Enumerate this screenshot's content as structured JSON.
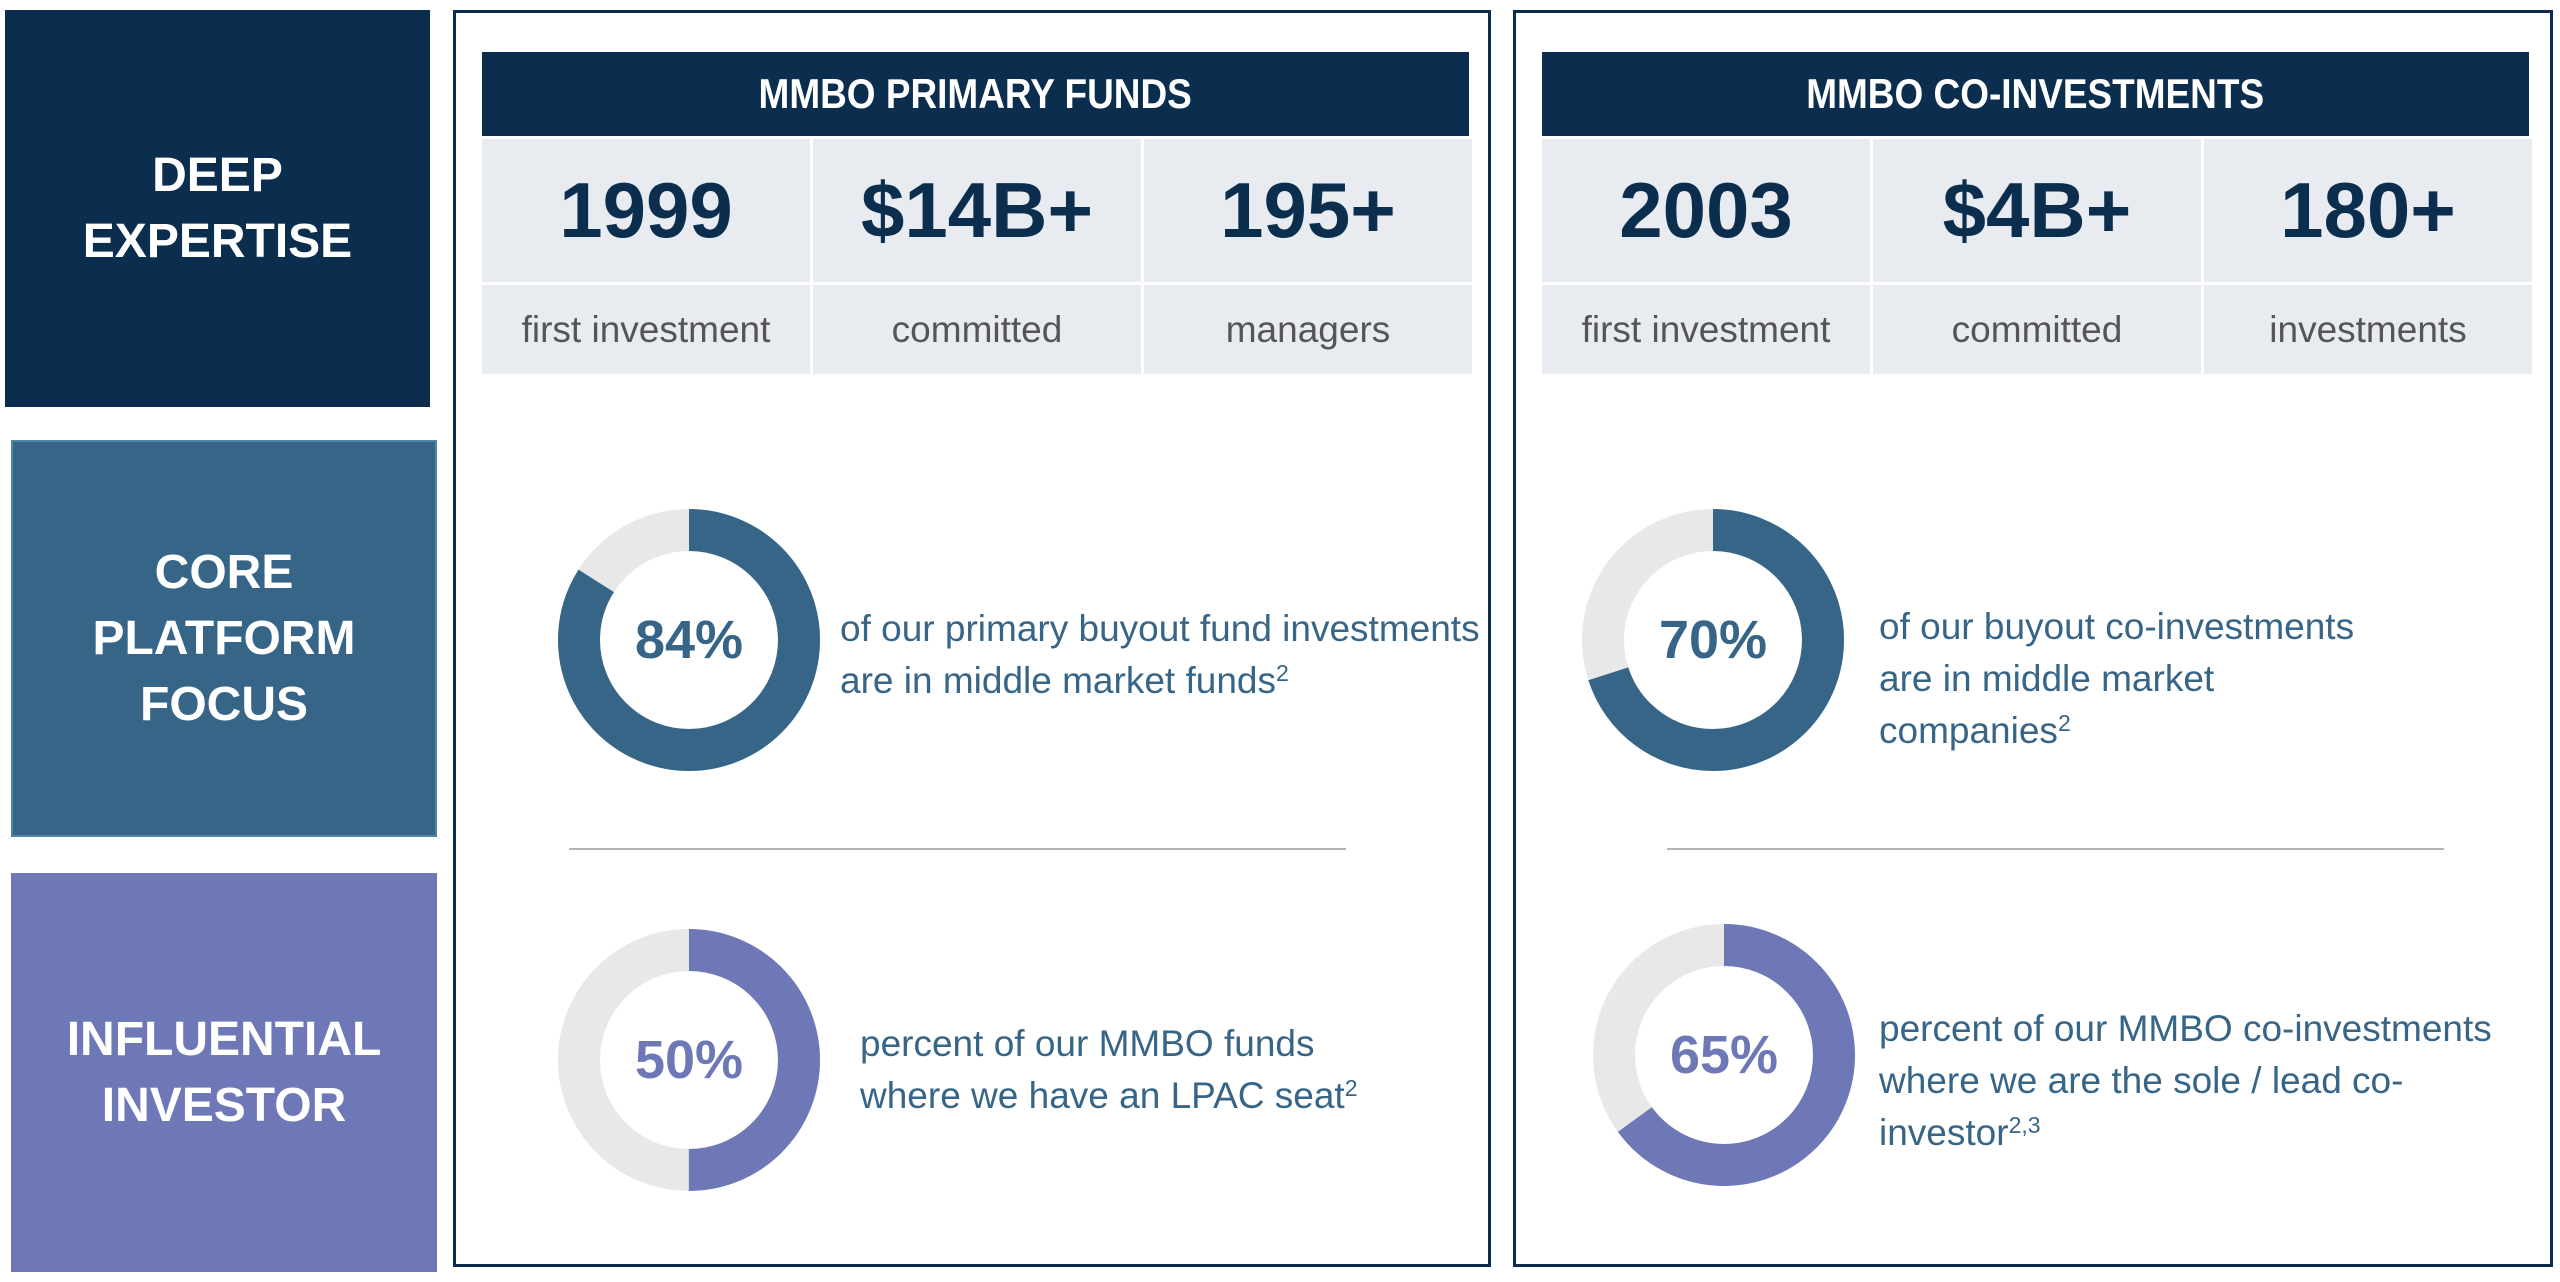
{
  "colors": {
    "navy": "#0b2e4f",
    "steel": "#376587",
    "purple": "#6f78b6",
    "cell_bg": "#e8ebf0",
    "donut_bg": "#e8e8e8"
  },
  "pillars": [
    {
      "label": "DEEP\nEXPERTISE",
      "color": "#0b2e4f"
    },
    {
      "label": "CORE\nPLATFORM\nFOCUS",
      "color": "#376587"
    },
    {
      "label": "INFLUENTIAL\nINVESTOR",
      "color": "#6f78b6"
    }
  ],
  "panels": [
    {
      "title": "MMBO PRIMARY FUNDS",
      "stats": [
        {
          "value": "1999",
          "label": "first investment"
        },
        {
          "value": "$14B+",
          "label": "committed"
        },
        {
          "value": "195+",
          "label": "managers"
        }
      ],
      "donuts": [
        {
          "percent": 84,
          "label": "84%",
          "color": "#376587",
          "lines": [
            "of our primary buyout fund investments",
            "are in middle market funds"
          ],
          "sup": "2"
        },
        {
          "percent": 50,
          "label": "50%",
          "color": "#6f78b6",
          "lines": [
            "percent of our MMBO funds",
            "where we have an LPAC seat"
          ],
          "sup": "2"
        }
      ]
    },
    {
      "title": "MMBO CO-INVESTMENTS",
      "stats": [
        {
          "value": "2003",
          "label": "first investment"
        },
        {
          "value": "$4B+",
          "label": "committed"
        },
        {
          "value": "180+",
          "label": "investments"
        }
      ],
      "donuts": [
        {
          "percent": 70,
          "label": "70%",
          "color": "#376587",
          "lines": [
            "of our buyout co-investments",
            "are in middle market",
            "companies"
          ],
          "sup": "2"
        },
        {
          "percent": 65,
          "label": "65%",
          "color": "#6f78b6",
          "lines": [
            "percent of our MMBO co-investments",
            "where we are the sole / lead co-",
            "investor"
          ],
          "sup": "2,3"
        }
      ]
    }
  ]
}
